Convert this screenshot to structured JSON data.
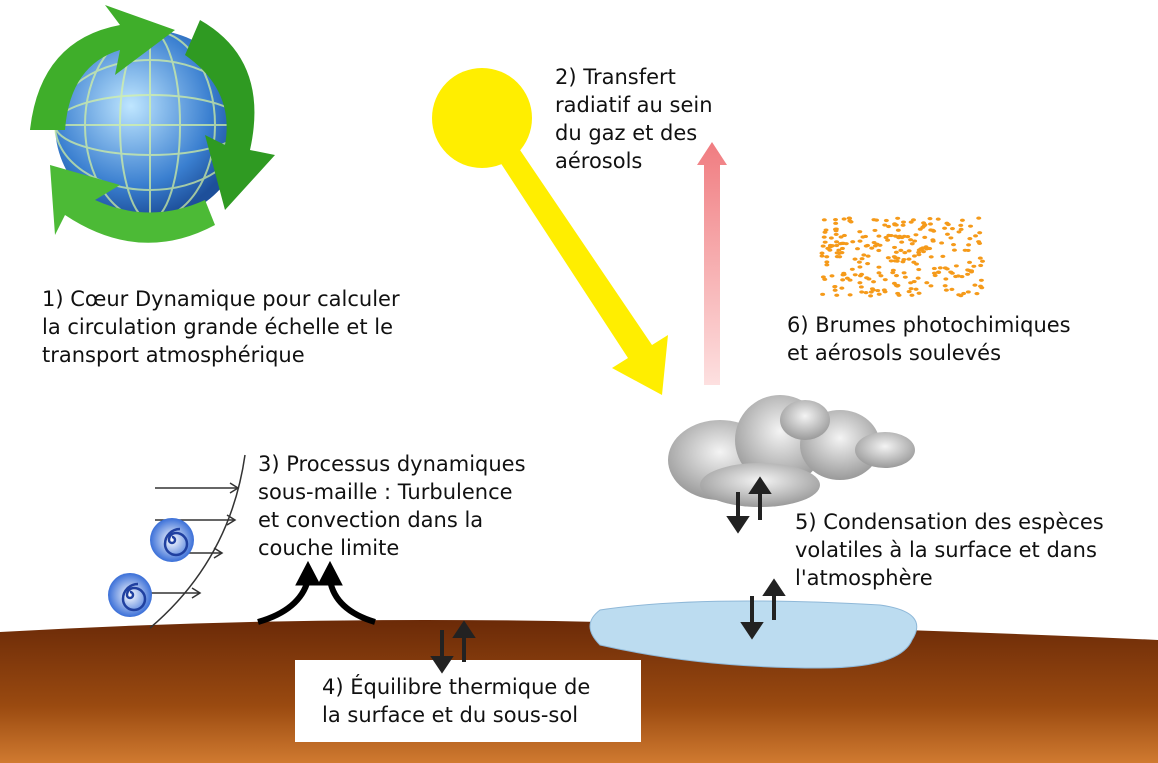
{
  "labels": [
    {
      "lines": [
        "1) Cœur Dynamique pour calculer",
        "la circulation grande échelle et le",
        "transport atmosphérique"
      ]
    },
    {
      "lines": [
        "2) Transfert",
        "radiatif au sein",
        "du gaz et des",
        "aérosols"
      ]
    },
    {
      "lines": [
        "3) Processus dynamiques",
        "sous-maille : Turbulence",
        "et convection dans la",
        "couche limite"
      ]
    },
    {
      "lines": [
        "4) Équilibre thermique de",
        "la surface et du sous-sol"
      ]
    },
    {
      "lines": [
        "5) Condensation des espèces",
        "volatiles à la surface et dans",
        "l'atmosphère"
      ]
    },
    {
      "lines": [
        "6) Brumes photochimiques",
        "et aérosols soulevés"
      ]
    }
  ]
}
